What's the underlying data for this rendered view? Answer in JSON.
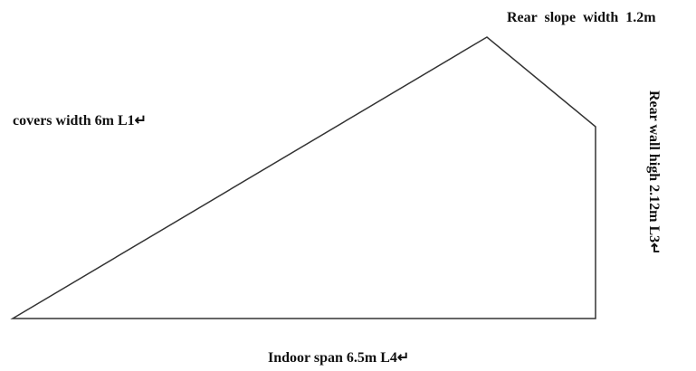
{
  "labels": {
    "rear_slope": "Rear  slope  width  1.2m",
    "cover": "covers width 6m L1↵",
    "rear_wall": "Rear wall high 2.12m L3↵",
    "span": "Indoor span 6.5m L4↵"
  }
}
